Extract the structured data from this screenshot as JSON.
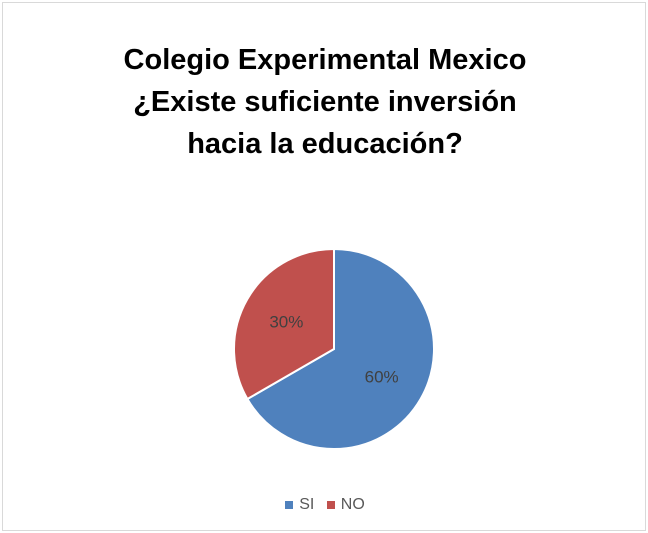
{
  "chart_data": {
    "type": "pie",
    "title": [
      "Colegio Experimental Mexico",
      "¿Existe suficiente inversión",
      "hacia la educación?"
    ],
    "categories": [
      "SI",
      "NO"
    ],
    "values": [
      60,
      30
    ],
    "data_labels": [
      "60%",
      "30%"
    ],
    "colors": [
      "#4f81bd",
      "#c0504d"
    ],
    "legend_position": "bottom"
  }
}
